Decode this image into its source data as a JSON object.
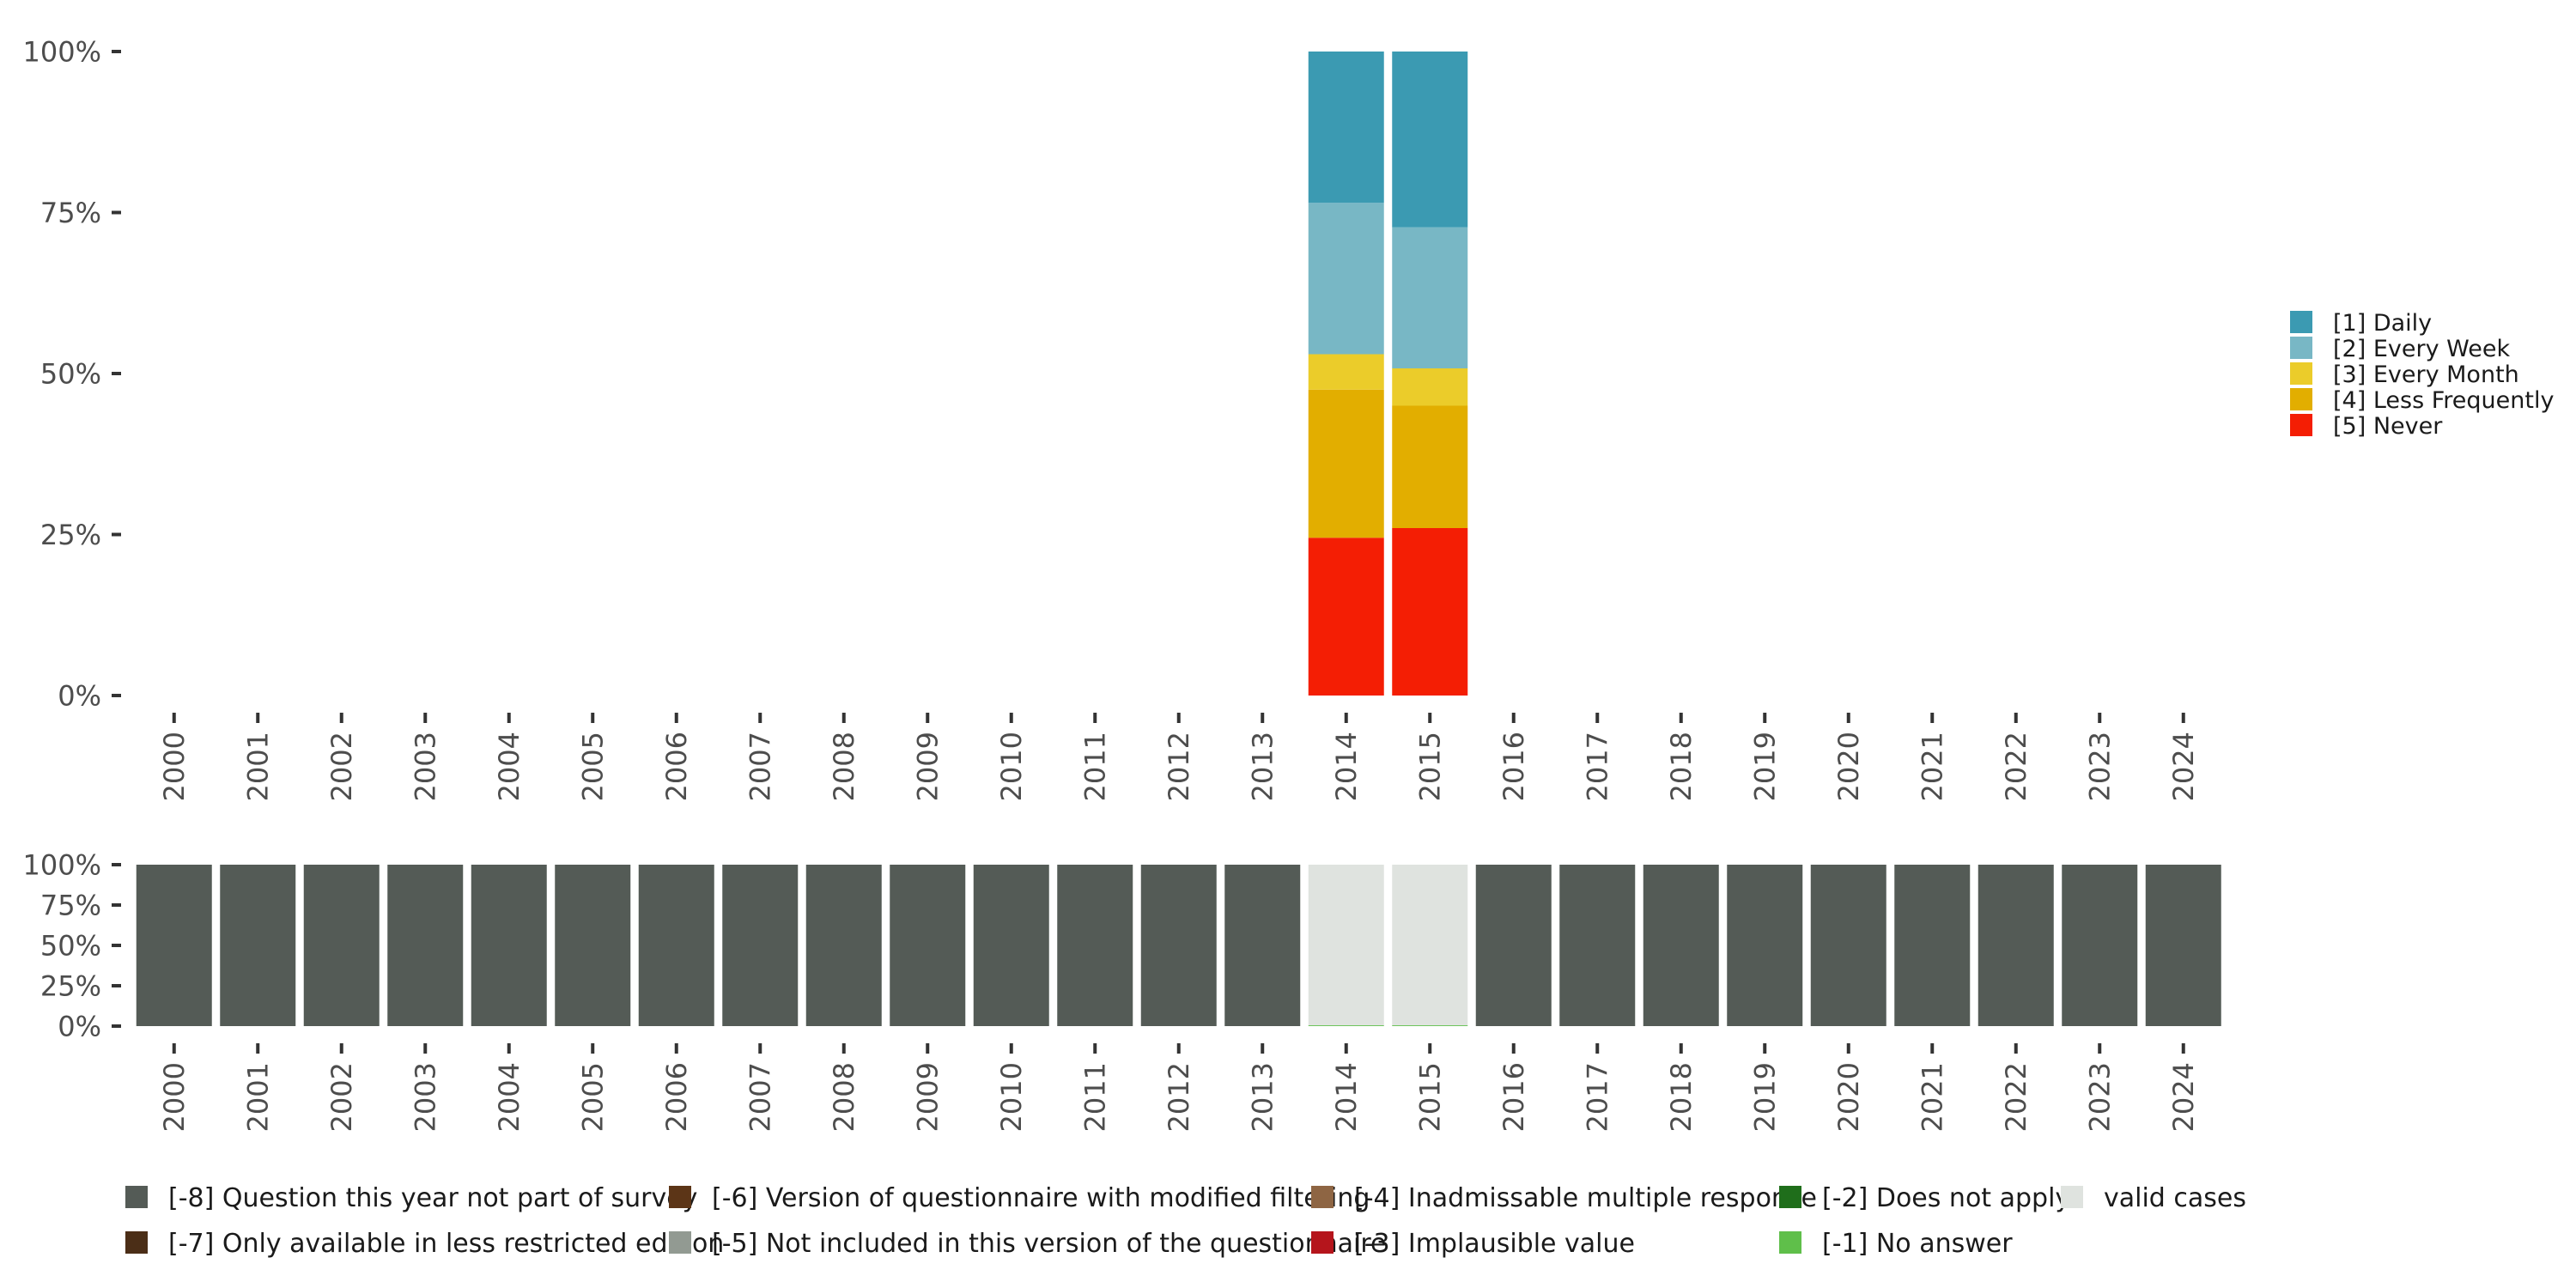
{
  "chart_data": [
    {
      "type": "bar",
      "stacked": true,
      "categories": [
        "2000",
        "2001",
        "2002",
        "2003",
        "2004",
        "2005",
        "2006",
        "2007",
        "2008",
        "2009",
        "2010",
        "2011",
        "2012",
        "2013",
        "2014",
        "2015",
        "2016",
        "2017",
        "2018",
        "2019",
        "2020",
        "2021",
        "2022",
        "2023",
        "2024"
      ],
      "yticks": [
        "0%",
        "25%",
        "50%",
        "75%",
        "100%"
      ],
      "ylim": [
        0,
        100
      ],
      "grid": false,
      "legend_position": "right",
      "series": [
        {
          "name": "[5] Never",
          "color": "#F41E04",
          "values": {
            "2014": 24.5,
            "2015": 26.0
          }
        },
        {
          "name": "[4] Less Frequently",
          "color": "#E2AE00",
          "values": {
            "2014": 23.0,
            "2015": 19.0
          }
        },
        {
          "name": "[3] Every Month",
          "color": "#EBCC2A",
          "values": {
            "2014": 5.5,
            "2015": 5.8
          }
        },
        {
          "name": "[2] Every Week",
          "color": "#78B7C5",
          "values": {
            "2014": 23.5,
            "2015": 21.9
          }
        },
        {
          "name": "[1] Daily",
          "color": "#3B9AB2",
          "values": {
            "2014": 23.5,
            "2015": 27.3
          }
        }
      ],
      "legend_order": [
        "[1] Daily",
        "[2] Every Week",
        "[3] Every Month",
        "[4] Less Frequently",
        "[5] Never"
      ]
    },
    {
      "type": "bar",
      "stacked": true,
      "categories": [
        "2000",
        "2001",
        "2002",
        "2003",
        "2004",
        "2005",
        "2006",
        "2007",
        "2008",
        "2009",
        "2010",
        "2011",
        "2012",
        "2013",
        "2014",
        "2015",
        "2016",
        "2017",
        "2018",
        "2019",
        "2020",
        "2021",
        "2022",
        "2023",
        "2024"
      ],
      "yticks": [
        "0%",
        "25%",
        "50%",
        "75%",
        "100%"
      ],
      "ylim": [
        0,
        100
      ],
      "grid": false,
      "legend_position": "bottom",
      "series": [
        {
          "name": "[-8] Question this year not part of survey",
          "color": "#545B56",
          "values": {
            "2000": 100,
            "2001": 100,
            "2002": 100,
            "2003": 100,
            "2004": 100,
            "2005": 100,
            "2006": 100,
            "2007": 100,
            "2008": 100,
            "2009": 100,
            "2010": 100,
            "2011": 100,
            "2012": 100,
            "2013": 100,
            "2014": 0,
            "2015": 0,
            "2016": 100,
            "2017": 100,
            "2018": 100,
            "2019": 100,
            "2020": 100,
            "2021": 100,
            "2022": 100,
            "2023": 100,
            "2024": 100
          }
        },
        {
          "name": "[-7] Only available in less restricted edition",
          "color": "#4B2E17",
          "values": {}
        },
        {
          "name": "[-6] Version of questionnaire with modified filtering",
          "color": "#5C3517",
          "values": {}
        },
        {
          "name": "[-5] Not included in this version of the questionnaire",
          "color": "#929A92",
          "values": {}
        },
        {
          "name": "[-4] Inadmissable multiple response",
          "color": "#8E6543",
          "values": {}
        },
        {
          "name": "[-3] Implausible value",
          "color": "#B5151C",
          "values": {}
        },
        {
          "name": "[-2] Does not apply",
          "color": "#1F6E1B",
          "values": {}
        },
        {
          "name": "[-1] No answer",
          "color": "#5FBF4A",
          "values": {
            "2014": 0.5,
            "2015": 0.5
          }
        },
        {
          "name": "valid cases",
          "color": "#DFE3DF",
          "values": {
            "2014": 99.5,
            "2015": 99.5
          }
        }
      ]
    }
  ]
}
